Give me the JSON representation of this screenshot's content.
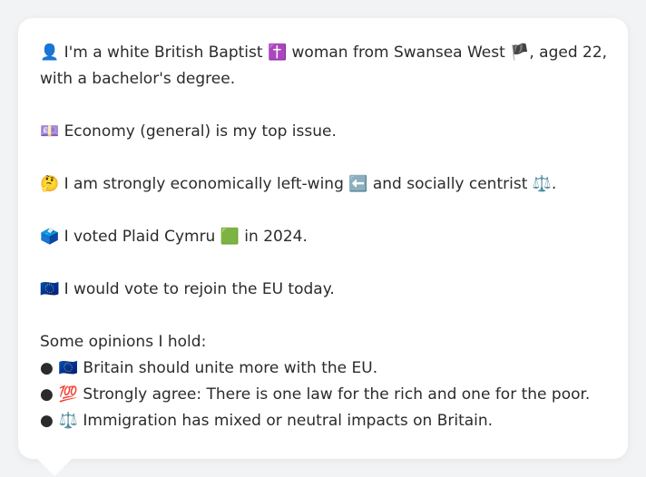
{
  "profile": {
    "intro_line1": "👤 I'm a white British Baptist ✝️ woman from Swansea West 🏴, aged 22,",
    "intro_line2": "with a bachelor's degree.",
    "issue": "💷 Economy (general) is my top issue.",
    "ideology": "🤔 I am strongly economically left-wing ⬅️ and socially centrist ⚖️.",
    "vote": "🗳️ I voted Plaid Cymru 🟩 in 2024.",
    "eu": "🇪🇺 I would vote to rejoin the EU today."
  },
  "opinions": {
    "heading": "Some opinions I hold:",
    "bullet": "●",
    "items": [
      "🇪🇺 Britain should unite more with the EU.",
      "💯 Strongly agree: There is one law for the rich and one for the poor.",
      "⚖️ Immigration has mixed or neutral impacts on Britain."
    ]
  }
}
